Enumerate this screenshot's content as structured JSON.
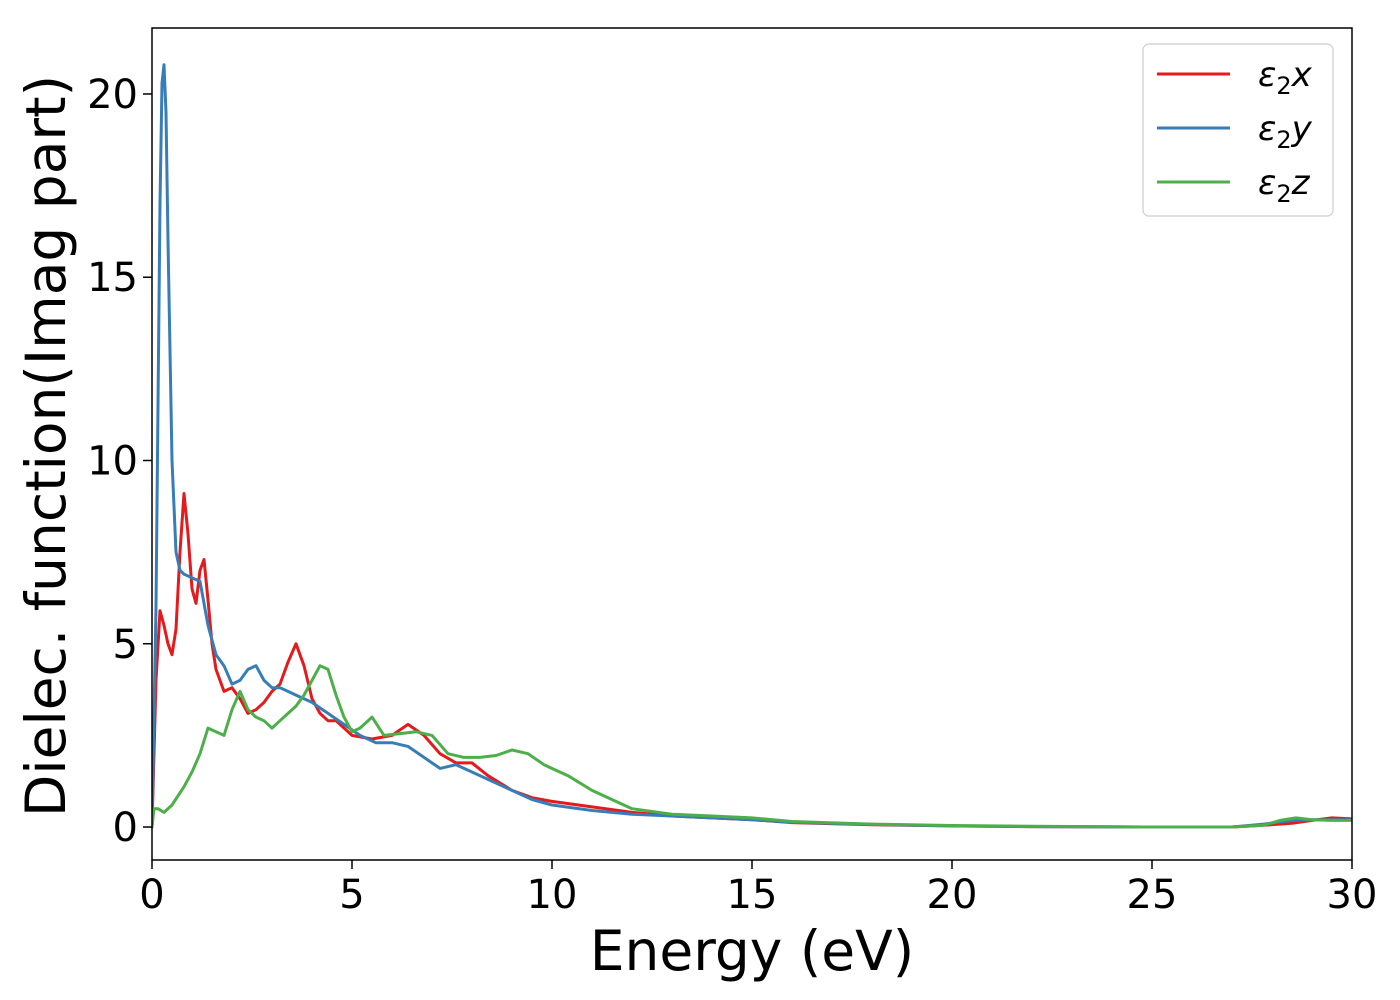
{
  "chart_data": {
    "type": "line",
    "title": "",
    "xlabel": "Energy (eV)",
    "ylabel": "Dielec. function(Imag part)",
    "xlim": [
      0,
      30
    ],
    "ylim": [
      -0.9,
      21.8
    ],
    "xticks": [
      0,
      5,
      10,
      15,
      20,
      25,
      30
    ],
    "yticks": [
      0,
      5,
      10,
      15,
      20
    ],
    "xtick_labels": [
      "0",
      "5",
      "10",
      "15",
      "20",
      "25",
      "30"
    ],
    "ytick_labels": [
      "0",
      "5",
      "10",
      "15",
      "20"
    ],
    "grid": false,
    "legend_position": "top-right",
    "series": [
      {
        "name": "ε2x",
        "legend": {
          "base": "ε",
          "sub": "2",
          "tail": "x"
        },
        "color": "#e41a1c",
        "x": [
          0,
          0.1,
          0.2,
          0.3,
          0.4,
          0.5,
          0.6,
          0.7,
          0.8,
          0.9,
          1.0,
          1.1,
          1.2,
          1.3,
          1.4,
          1.5,
          1.6,
          1.8,
          2.0,
          2.2,
          2.4,
          2.6,
          2.8,
          3.0,
          3.2,
          3.4,
          3.6,
          3.8,
          4.0,
          4.2,
          4.4,
          4.6,
          5.0,
          5.5,
          6.0,
          6.4,
          6.8,
          7.2,
          7.6,
          8.0,
          8.4,
          9.0,
          9.5,
          10.0,
          11.0,
          12.0,
          13.0,
          14.0,
          15.0,
          16.0,
          18.0,
          20.0,
          22.0,
          25.0,
          27.0,
          27.8,
          28.5,
          29.0,
          29.5,
          30.0
        ],
        "y": [
          0.0,
          4.0,
          5.9,
          5.5,
          5.0,
          4.7,
          5.4,
          7.5,
          9.1,
          8.0,
          6.5,
          6.1,
          7.0,
          7.3,
          6.2,
          5.0,
          4.3,
          3.7,
          3.8,
          3.5,
          3.1,
          3.2,
          3.4,
          3.7,
          3.9,
          4.5,
          5.0,
          4.4,
          3.5,
          3.1,
          2.9,
          2.9,
          2.5,
          2.4,
          2.5,
          2.8,
          2.5,
          2.0,
          1.75,
          1.75,
          1.4,
          1.0,
          0.8,
          0.7,
          0.55,
          0.4,
          0.3,
          0.25,
          0.2,
          0.12,
          0.06,
          0.03,
          0.01,
          0.0,
          0.0,
          0.05,
          0.1,
          0.18,
          0.25,
          0.22
        ]
      },
      {
        "name": "ε2y",
        "legend": {
          "base": "ε",
          "sub": "2",
          "tail": "y"
        },
        "color": "#377eb8",
        "x": [
          0,
          0.1,
          0.2,
          0.25,
          0.3,
          0.35,
          0.4,
          0.5,
          0.6,
          0.7,
          0.8,
          1.0,
          1.2,
          1.4,
          1.6,
          1.8,
          2.0,
          2.2,
          2.4,
          2.6,
          2.8,
          3.0,
          3.2,
          3.4,
          3.6,
          3.8,
          4.0,
          4.4,
          4.8,
          5.2,
          5.6,
          6.0,
          6.4,
          6.8,
          7.2,
          7.6,
          8.0,
          8.4,
          9.0,
          9.5,
          10.0,
          11.0,
          12.0,
          13.0,
          14.0,
          15.0,
          16.0,
          18.0,
          20.0,
          22.0,
          25.0,
          27.0,
          27.8,
          28.5,
          29.0,
          29.5,
          30.0
        ],
        "y": [
          0.0,
          6.0,
          17.0,
          20.3,
          20.8,
          19.5,
          16.0,
          10.0,
          7.5,
          7.0,
          6.9,
          6.8,
          6.7,
          5.5,
          4.7,
          4.4,
          3.9,
          4.0,
          4.3,
          4.4,
          4.0,
          3.8,
          3.8,
          3.7,
          3.6,
          3.5,
          3.4,
          3.1,
          2.8,
          2.5,
          2.3,
          2.3,
          2.2,
          1.9,
          1.6,
          1.7,
          1.5,
          1.3,
          1.0,
          0.75,
          0.6,
          0.45,
          0.35,
          0.3,
          0.25,
          0.2,
          0.13,
          0.07,
          0.03,
          0.01,
          0.0,
          0.0,
          0.08,
          0.18,
          0.2,
          0.2,
          0.2
        ]
      },
      {
        "name": "ε2z",
        "legend": {
          "base": "ε",
          "sub": "2",
          "tail": "z"
        },
        "color": "#4daf4a",
        "x": [
          0,
          0.05,
          0.15,
          0.3,
          0.5,
          0.8,
          1.0,
          1.2,
          1.4,
          1.6,
          1.8,
          2.0,
          2.2,
          2.4,
          2.6,
          2.8,
          3.0,
          3.2,
          3.4,
          3.6,
          3.8,
          4.0,
          4.2,
          4.4,
          4.6,
          4.8,
          5.0,
          5.2,
          5.5,
          5.8,
          6.2,
          6.6,
          7.0,
          7.4,
          7.8,
          8.2,
          8.6,
          9.0,
          9.4,
          9.8,
          10.4,
          11.0,
          12.0,
          13.0,
          14.0,
          15.0,
          16.0,
          18.0,
          20.0,
          22.0,
          25.0,
          27.0,
          27.8,
          28.2,
          28.6,
          29.0,
          29.5,
          30.0
        ],
        "y": [
          0.0,
          0.5,
          0.5,
          0.4,
          0.6,
          1.1,
          1.5,
          2.0,
          2.7,
          2.6,
          2.5,
          3.2,
          3.7,
          3.2,
          3.0,
          2.9,
          2.7,
          2.9,
          3.1,
          3.3,
          3.6,
          4.0,
          4.4,
          4.3,
          3.6,
          3.0,
          2.6,
          2.7,
          3.0,
          2.5,
          2.55,
          2.6,
          2.5,
          2.0,
          1.9,
          1.9,
          1.95,
          2.1,
          2.0,
          1.7,
          1.4,
          1.0,
          0.5,
          0.35,
          0.3,
          0.25,
          0.15,
          0.08,
          0.04,
          0.02,
          0.0,
          0.0,
          0.05,
          0.18,
          0.25,
          0.2,
          0.18,
          0.18
        ]
      }
    ]
  }
}
